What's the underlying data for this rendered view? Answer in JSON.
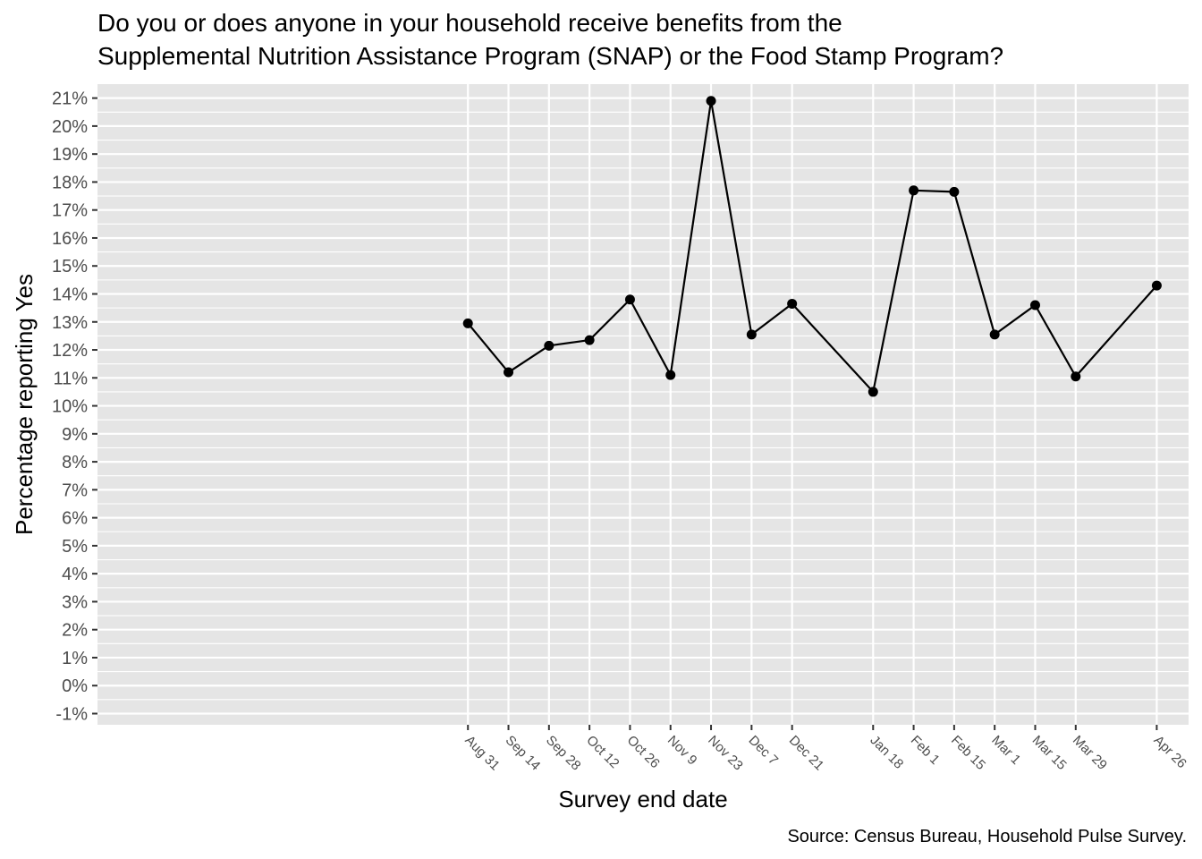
{
  "chart_data": {
    "type": "line",
    "title_lines": [
      "Do you or does anyone in your household receive benefits from the",
      "Supplemental Nutrition Assistance Program (SNAP) or the Food Stamp Program?"
    ],
    "xlabel": "Survey end date",
    "ylabel": "Percentage reporting Yes",
    "caption": "Source: Census Bureau, Household Pulse Survey.",
    "y_unit": "%",
    "ylim": [
      -1.4,
      21.5
    ],
    "yticks": [
      -1,
      0,
      1,
      2,
      3,
      4,
      5,
      6,
      7,
      8,
      9,
      10,
      11,
      12,
      13,
      14,
      15,
      16,
      17,
      18,
      19,
      20,
      21
    ],
    "y_tick_labels": [
      "-1%",
      "0%",
      "1%",
      "2%",
      "3%",
      "4%",
      "5%",
      "6%",
      "7%",
      "8%",
      "9%",
      "10%",
      "11%",
      "12%",
      "13%",
      "14%",
      "15%",
      "16%",
      "17%",
      "18%",
      "19%",
      "20%",
      "21%"
    ],
    "x_tick_labels": [
      "Aug 31",
      "Sep 14",
      "Sep 28",
      "Oct 12",
      "Oct 26",
      "Nov  9",
      "Nov 23",
      "Dec  7",
      "Dec 21",
      "Jan 18",
      "Feb  1",
      "Feb 15",
      "Mar  1",
      "Mar 15",
      "Mar 29",
      "Apr 26"
    ],
    "x_dates": [
      "2020-08-31",
      "2020-09-14",
      "2020-09-28",
      "2020-10-12",
      "2020-10-26",
      "2020-11-09",
      "2020-11-23",
      "2020-12-07",
      "2020-12-21",
      "2021-01-18",
      "2021-02-01",
      "2021-02-15",
      "2021-03-01",
      "2021-03-15",
      "2021-03-29",
      "2021-04-26"
    ],
    "xlim": [
      "2020-04-25",
      "2021-05-07"
    ],
    "series": [
      {
        "values": [
          12.95,
          11.2,
          12.15,
          12.35,
          13.8,
          11.1,
          20.9,
          12.55,
          13.65,
          10.5,
          17.7,
          17.65,
          12.55,
          13.6,
          11.05,
          14.3
        ]
      }
    ],
    "grid": true,
    "line_color": "#000000",
    "point_color": "#000000",
    "panel_background": "#e5e5e5",
    "grid_color": "#ffffff"
  }
}
